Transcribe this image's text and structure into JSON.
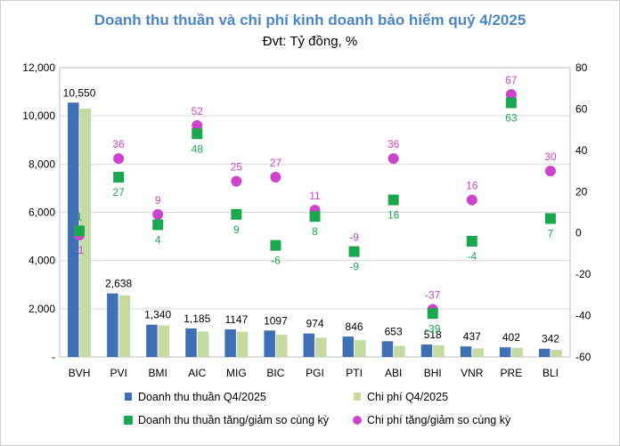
{
  "chart_data": {
    "type": "bar",
    "title": "Doanh thu thuần và chi phí kinh doanh bảo hiểm quý 4/2025",
    "subtitle": "Đvt: Tỷ đồng, %",
    "categories": [
      "BVH",
      "PVI",
      "BMI",
      "AIC",
      "MIG",
      "BIC",
      "PGI",
      "PTI",
      "ABI",
      "BHI",
      "VNR",
      "PRE",
      "BLI"
    ],
    "y_left": {
      "min": 0,
      "max": 12000,
      "ticks": [
        "-",
        "2,000",
        "4,000",
        "6,000",
        "8,000",
        "10,000",
        "12,000"
      ]
    },
    "y_right": {
      "min": -60,
      "max": 80,
      "ticks": [
        "-60",
        "-40",
        "-20",
        "0",
        "20",
        "40",
        "60",
        "80"
      ]
    },
    "series": [
      {
        "name": "Doanh thu thuần Q4/2025",
        "kind": "bar",
        "axis": "left",
        "color": "#3f6fb5",
        "values": [
          10550,
          2638,
          1340,
          1185,
          1147,
          1097,
          974,
          846,
          653,
          518,
          437,
          402,
          342
        ],
        "labels": [
          "10,550",
          "2,638",
          "1,340",
          "1,185",
          "1147",
          "1097",
          "974",
          "846",
          "653",
          "518",
          "437",
          "402",
          "342"
        ]
      },
      {
        "name": "Chi phí Q4/2025",
        "kind": "bar",
        "axis": "left",
        "color": "#c5dba2",
        "values": [
          10300,
          2560,
          1310,
          1060,
          1050,
          920,
          800,
          700,
          460,
          490,
          360,
          380,
          300
        ]
      },
      {
        "name": "Doanh thu thuần tăng/giảm so cùng kỳ",
        "kind": "marker-square",
        "axis": "right",
        "color": "#1aa84e",
        "values": [
          1,
          27,
          4,
          48,
          9,
          -6,
          8,
          -9,
          16,
          -39,
          -4,
          63,
          7
        ],
        "labels": [
          "1",
          "27",
          "4",
          "48",
          "9",
          "-6",
          "8",
          "-9",
          "16",
          "-39",
          "-4",
          "63",
          "7"
        ]
      },
      {
        "name": "Chi phí tăng/giảm so cùng kỳ",
        "kind": "marker-circle",
        "axis": "right",
        "color": "#cc44cc",
        "values": [
          -1,
          36,
          9,
          52,
          25,
          27,
          11,
          -9,
          36,
          -37,
          16,
          67,
          30
        ],
        "labels": [
          "-1",
          "36",
          "9",
          "52",
          "25",
          "27",
          "11",
          "-9",
          "36",
          "-37",
          "16",
          "67",
          "30"
        ]
      }
    ],
    "grid": true,
    "legend": "bottom"
  }
}
